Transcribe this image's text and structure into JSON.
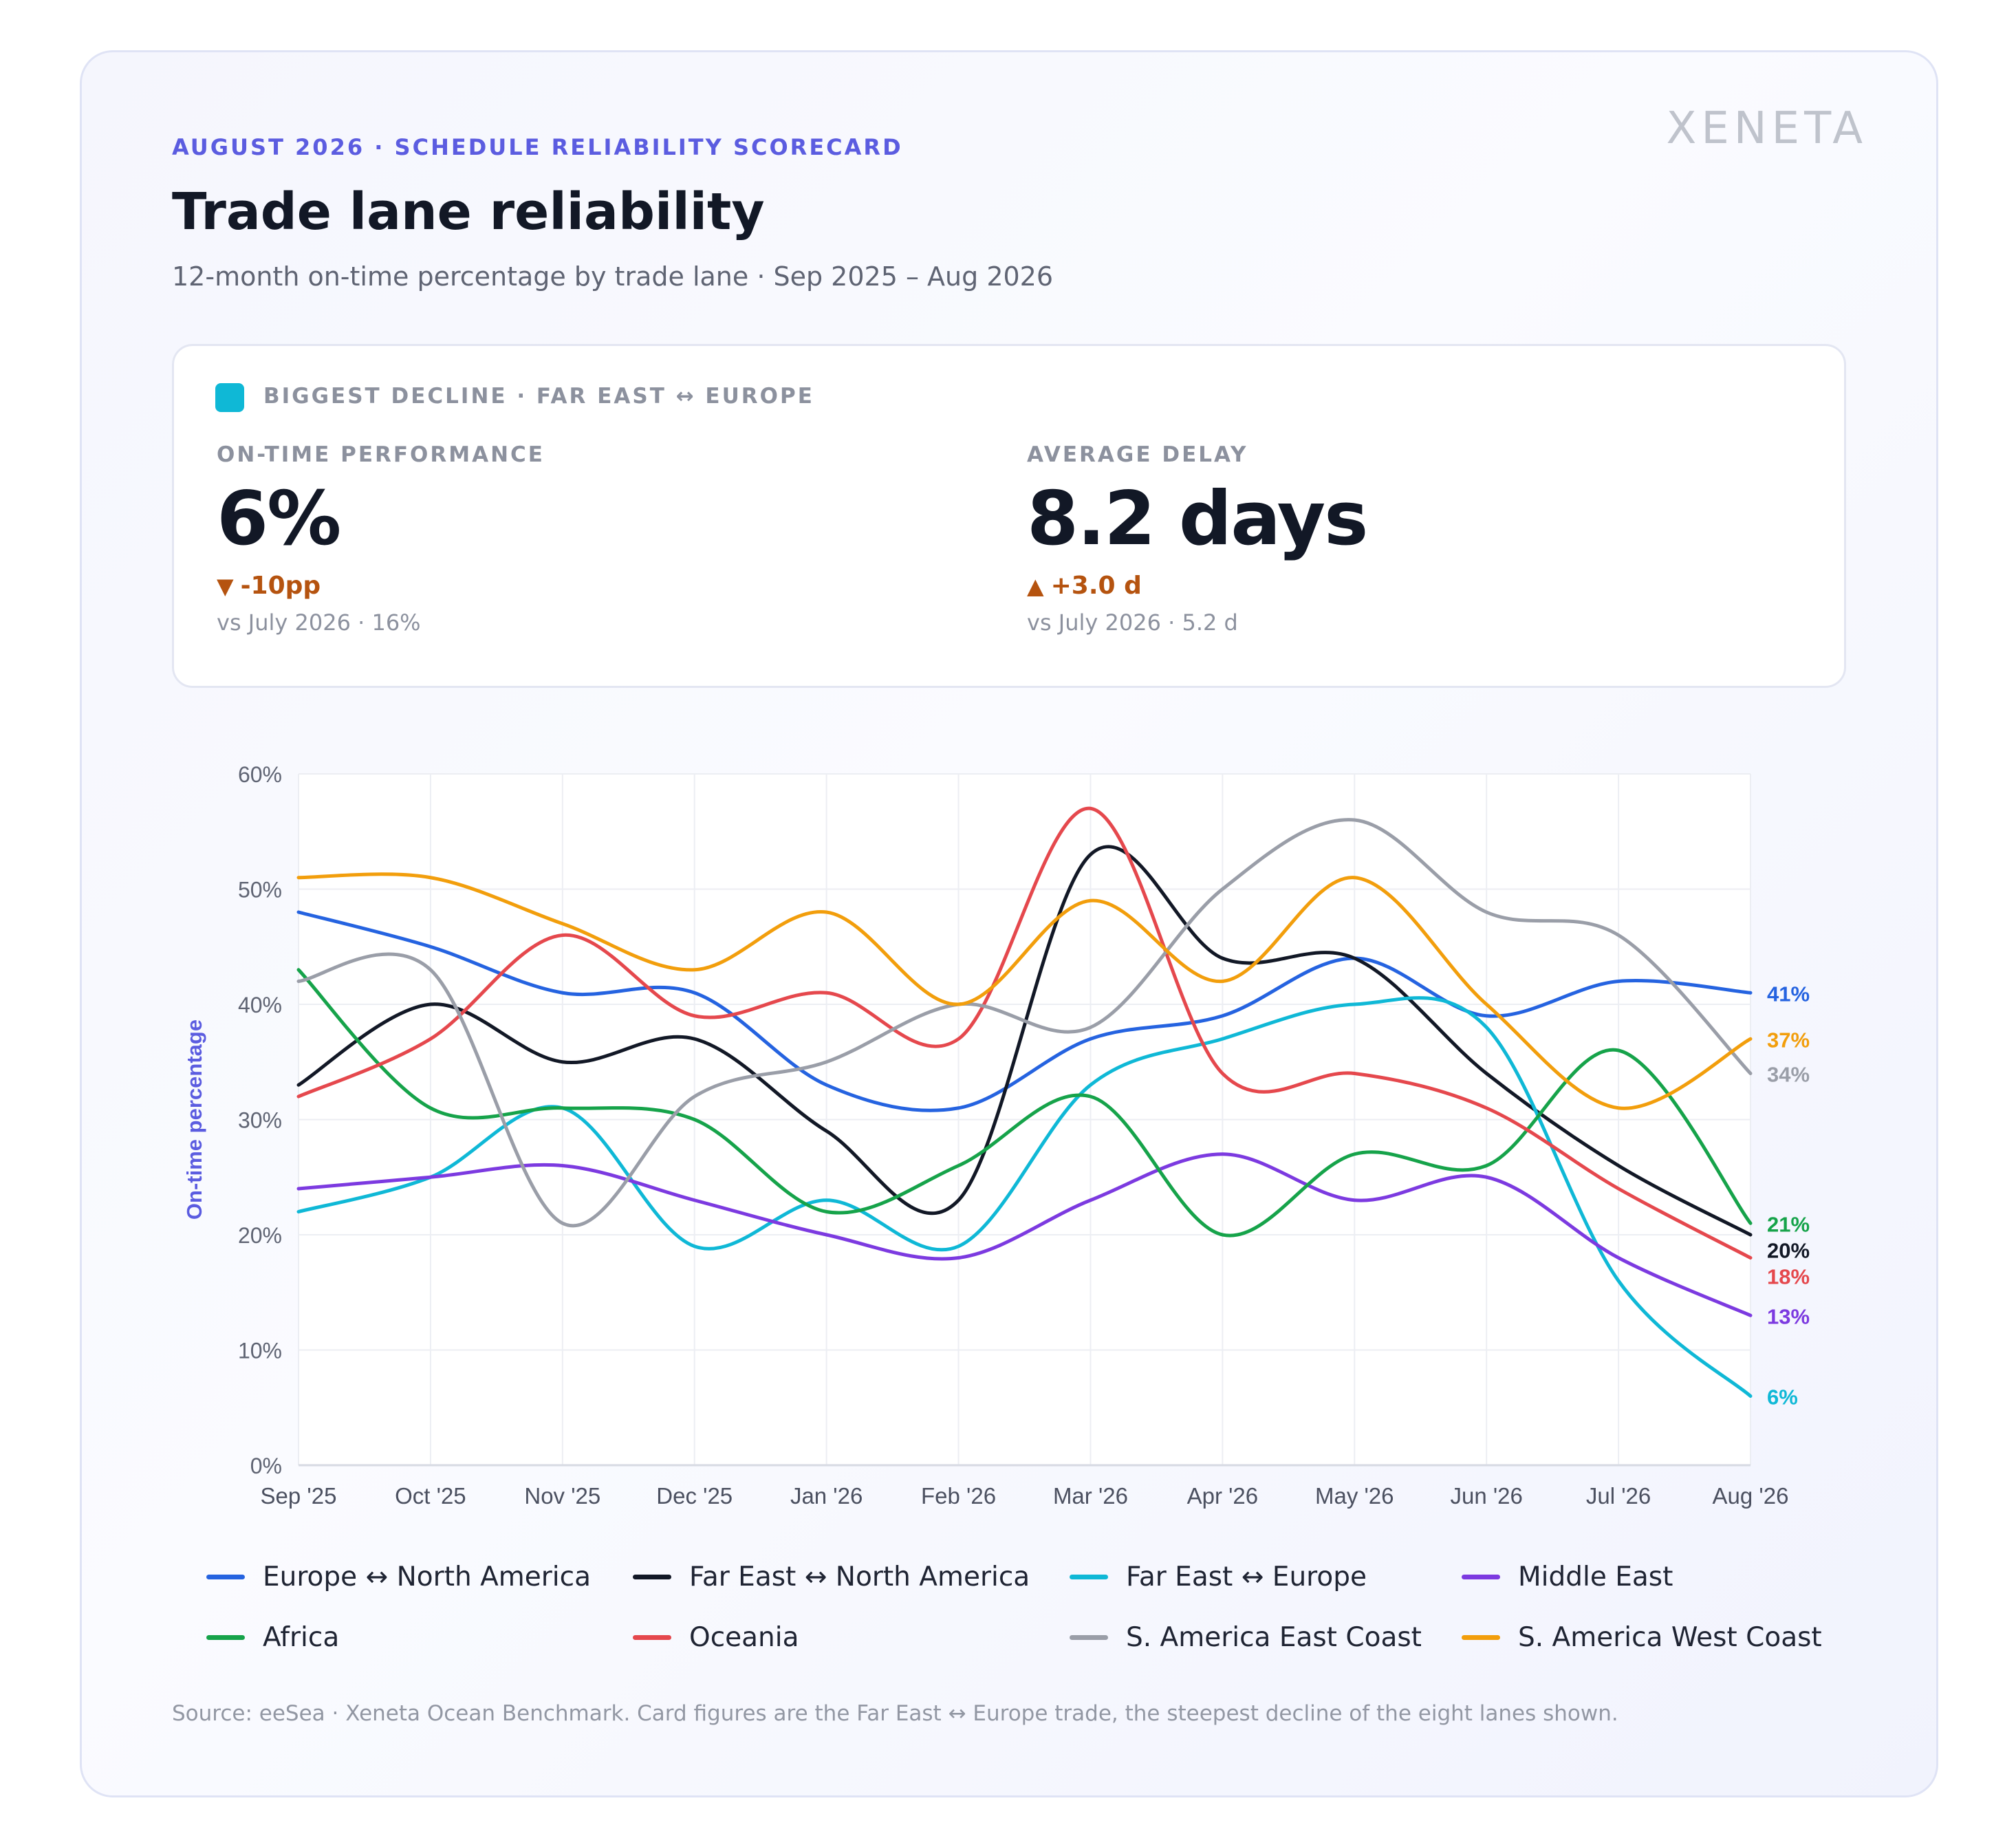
{
  "header": {
    "eyebrow": "AUGUST 2026 · SCHEDULE RELIABILITY SCORECARD",
    "logo": "XENETA",
    "title": "Trade lane reliability",
    "subtitle": "12-month on-time percentage by trade lane · Sep 2025 – Aug 2026"
  },
  "kpi": {
    "accent_color": "#0fb8d6",
    "tag": "BIGGEST DECLINE · FAR EAST ↔ EUROPE",
    "on_time": {
      "label": "ON-TIME PERFORMANCE",
      "value": "6%",
      "delta_icon": "triangle-down-icon",
      "delta": "-10pp",
      "reference": "vs July 2026 · 16%"
    },
    "delay": {
      "label": "AVERAGE DELAY",
      "value": "8.2 days",
      "delta_icon": "triangle-up-icon",
      "delta": "+3.0 d",
      "reference": "vs July 2026 · 5.2 d"
    },
    "delta_color": "#b5530f"
  },
  "chart_data": {
    "type": "line",
    "ylabel": "On-time percentage",
    "xlabel": "",
    "ylim": [
      0,
      60
    ],
    "yticks": [
      0,
      10,
      20,
      30,
      40,
      50,
      60
    ],
    "ytick_labels": [
      "0%",
      "10%",
      "20%",
      "30%",
      "40%",
      "50%",
      "60%"
    ],
    "x": [
      "Sep '25",
      "Oct '25",
      "Nov '25",
      "Dec '25",
      "Jan '26",
      "Feb '26",
      "Mar '26",
      "Apr '26",
      "May '26",
      "Jun '26",
      "Jul '26",
      "Aug '26"
    ],
    "grid": true,
    "legend_position": "bottom",
    "series": [
      {
        "name": "Europe ↔ North America",
        "color": "#2563e0",
        "end_label": "41%",
        "values": [
          48,
          45,
          41,
          41,
          33,
          31,
          37,
          39,
          44,
          39,
          42,
          41
        ]
      },
      {
        "name": "Far East ↔ North America",
        "color": "#121826",
        "end_label": "20%",
        "values": [
          33,
          40,
          35,
          37,
          29,
          23,
          53,
          44,
          44,
          34,
          26,
          20
        ]
      },
      {
        "name": "Far East ↔ Europe",
        "color": "#0fb8d6",
        "end_label": "6%",
        "values": [
          22,
          25,
          31,
          19,
          23,
          19,
          33,
          37,
          40,
          38,
          16,
          6
        ]
      },
      {
        "name": "Middle East",
        "color": "#7c3ae0",
        "end_label": "13%",
        "values": [
          24,
          25,
          26,
          23,
          20,
          18,
          23,
          27,
          23,
          25,
          18,
          13
        ]
      },
      {
        "name": "Africa",
        "color": "#16a34a",
        "end_label": "21%",
        "values": [
          43,
          31,
          31,
          30,
          22,
          26,
          32,
          20,
          27,
          26,
          36,
          21
        ]
      },
      {
        "name": "Oceania",
        "color": "#e5484d",
        "end_label": "18%",
        "values": [
          32,
          37,
          46,
          39,
          41,
          37,
          57,
          34,
          34,
          31,
          24,
          18
        ]
      },
      {
        "name": "S. America East Coast",
        "color": "#9a9ea8",
        "end_label": "34%",
        "values": [
          42,
          43,
          21,
          32,
          35,
          40,
          38,
          50,
          56,
          48,
          46,
          34
        ]
      },
      {
        "name": "S. America West Coast",
        "color": "#f29e0c",
        "end_label": "37%",
        "values": [
          51,
          51,
          47,
          43,
          48,
          40,
          49,
          42,
          51,
          40,
          31,
          37
        ]
      }
    ]
  },
  "footer": {
    "source": "Source: eeSea · Xeneta Ocean Benchmark. Card figures are the Far East ↔ Europe trade, the steepest decline of the eight lanes shown."
  }
}
